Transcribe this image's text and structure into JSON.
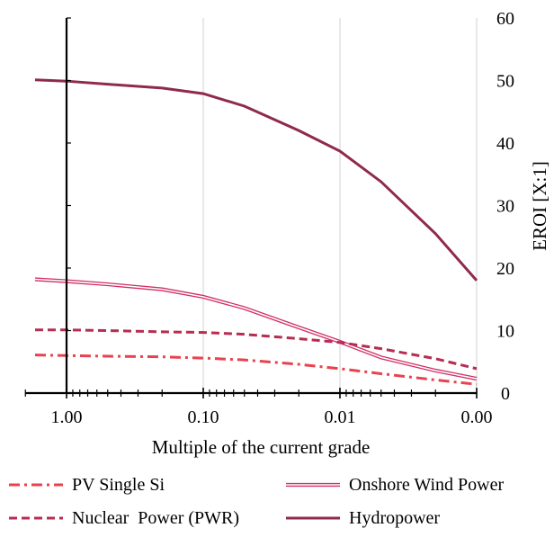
{
  "chart_data": {
    "type": "line",
    "title": "",
    "xlabel": "Multiple of the current grade",
    "ylabel": "EROI [X:1]",
    "x_axis": {
      "scale": "log",
      "reversed": true,
      "tick_labels": [
        "1.00",
        "0.10",
        "0.01",
        "0.00"
      ],
      "tick_values": [
        1,
        0.1,
        0.01,
        0.001
      ]
    },
    "y_axis": {
      "position": "right",
      "ylim": [
        0,
        60
      ],
      "ticks": [
        0,
        10,
        20,
        30,
        40,
        50,
        60
      ]
    },
    "grid": "vertical",
    "legend": "bottom",
    "series": [
      {
        "name": "PV Single Si",
        "style": "dash-dot",
        "color": "#e8424f",
        "x": [
          1.7,
          1.0,
          0.5,
          0.2,
          0.1,
          0.05,
          0.02,
          0.01,
          0.005,
          0.002,
          0.001
        ],
        "values": [
          6.1,
          6.0,
          5.9,
          5.8,
          5.6,
          5.3,
          4.6,
          3.9,
          3.1,
          2.1,
          1.4
        ]
      },
      {
        "name": "Onshore Wind Power",
        "style": "double",
        "color": "#d03067",
        "x": [
          1.7,
          1.0,
          0.5,
          0.2,
          0.1,
          0.05,
          0.02,
          0.01,
          0.005,
          0.002,
          0.001
        ],
        "values": [
          18.2,
          17.9,
          17.4,
          16.6,
          15.4,
          13.6,
          10.5,
          8.2,
          5.7,
          3.6,
          2.3
        ]
      },
      {
        "name": "Nuclear  Power (PWR)",
        "style": "dashed",
        "color": "#b52d52",
        "x": [
          1.7,
          1.0,
          0.5,
          0.2,
          0.1,
          0.05,
          0.02,
          0.01,
          0.005,
          0.002,
          0.001
        ],
        "values": [
          10.1,
          10.1,
          10.0,
          9.8,
          9.7,
          9.4,
          8.7,
          8.1,
          7.1,
          5.5,
          3.9
        ]
      },
      {
        "name": "Hydropower",
        "style": "solid",
        "color": "#8f2a4c",
        "x": [
          1.7,
          1.0,
          0.5,
          0.2,
          0.1,
          0.05,
          0.02,
          0.01,
          0.005,
          0.002,
          0.001
        ],
        "values": [
          50.1,
          49.9,
          49.4,
          48.8,
          47.9,
          45.9,
          42.0,
          38.7,
          33.8,
          25.5,
          18.0
        ]
      }
    ]
  }
}
